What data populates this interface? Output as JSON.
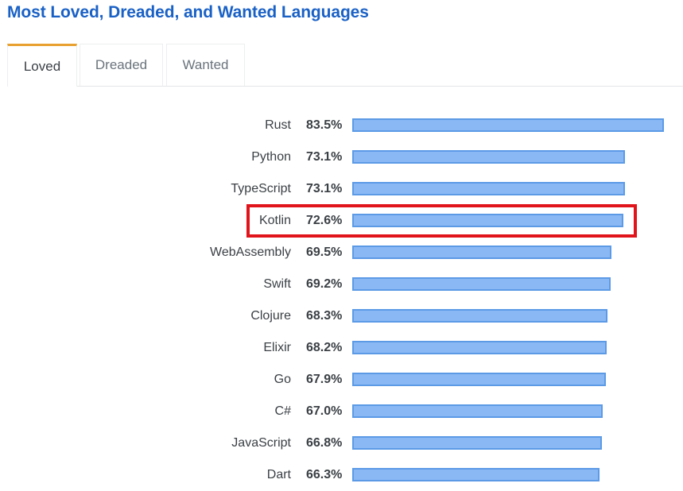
{
  "page": {
    "title": "Most Loved, Dreaded, and Wanted Languages"
  },
  "tabs": [
    {
      "label": "Loved",
      "active": true
    },
    {
      "label": "Dreaded",
      "active": false
    },
    {
      "label": "Wanted",
      "active": false
    }
  ],
  "colors": {
    "title": "#1a61c6",
    "active_tab_accent": "#e8a130",
    "bar_fill": "#8ab8f5",
    "bar_border": "#5c9ae6",
    "highlight_box": "#e0141a"
  },
  "rows": [
    {
      "language": "Rust",
      "percent_label": "83.5%",
      "value": 83.5
    },
    {
      "language": "Python",
      "percent_label": "73.1%",
      "value": 73.1
    },
    {
      "language": "TypeScript",
      "percent_label": "73.1%",
      "value": 73.1
    },
    {
      "language": "Kotlin",
      "percent_label": "72.6%",
      "value": 72.6
    },
    {
      "language": "WebAssembly",
      "percent_label": "69.5%",
      "value": 69.5
    },
    {
      "language": "Swift",
      "percent_label": "69.2%",
      "value": 69.2
    },
    {
      "language": "Clojure",
      "percent_label": "68.3%",
      "value": 68.3
    },
    {
      "language": "Elixir",
      "percent_label": "68.2%",
      "value": 68.2
    },
    {
      "language": "Go",
      "percent_label": "67.9%",
      "value": 67.9
    },
    {
      "language": "C#",
      "percent_label": "67.0%",
      "value": 67.0
    },
    {
      "language": "JavaScript",
      "percent_label": "66.8%",
      "value": 66.8
    },
    {
      "language": "Dart",
      "percent_label": "66.3%",
      "value": 66.3
    }
  ],
  "highlighted_language": "Kotlin",
  "chart_data": {
    "type": "bar",
    "orientation": "horizontal",
    "title": "Most Loved, Dreaded, and Wanted Languages",
    "active_tab": "Loved",
    "categories": [
      "Rust",
      "Python",
      "TypeScript",
      "Kotlin",
      "WebAssembly",
      "Swift",
      "Clojure",
      "Elixir",
      "Go",
      "C#",
      "JavaScript",
      "Dart"
    ],
    "values": [
      83.5,
      73.1,
      73.1,
      72.6,
      69.5,
      69.2,
      68.3,
      68.2,
      67.9,
      67.0,
      66.8,
      66.3
    ],
    "value_unit": "%",
    "xlabel": "",
    "ylabel": "",
    "grid": false,
    "legend": null,
    "annotations": [
      {
        "type": "highlight-box",
        "target": "Kotlin",
        "color": "#e0141a"
      }
    ]
  }
}
